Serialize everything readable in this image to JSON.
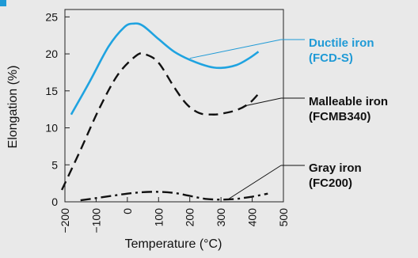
{
  "chart_data": {
    "type": "line",
    "xlabel": "Temperature (°C)",
    "ylabel": "Elongation (%)",
    "xlim": [
      -200,
      500
    ],
    "ylim": [
      0,
      26
    ],
    "x_ticks": [
      -200,
      -100,
      0,
      100,
      200,
      300,
      400,
      500
    ],
    "y_ticks": [
      0,
      5,
      10,
      15,
      20,
      25
    ],
    "grid": false,
    "legend": "right, callout labels with leader lines",
    "series": [
      {
        "name": "Ductile iron",
        "name_sub": "(FCD-S)",
        "color": "#1fa3e0",
        "label_color": "#1f9ad6",
        "style": "solid",
        "x": [
          -180,
          -120,
          -60,
          -10,
          20,
          50,
          100,
          150,
          200,
          260,
          300,
          350,
          390,
          420
        ],
        "y": [
          11.8,
          16.3,
          21,
          23.6,
          24.1,
          23.8,
          22,
          20.3,
          19.2,
          18.3,
          18.1,
          18.5,
          19.4,
          20.3
        ]
      },
      {
        "name": "Malleable iron",
        "name_sub": "(FCMB340)",
        "color": "#111111",
        "label_color": "#111111",
        "style": "dashed",
        "x": [
          -210,
          -150,
          -90,
          -30,
          30,
          60,
          100,
          150,
          190,
          230,
          270,
          300,
          350,
          390,
          420
        ],
        "y": [
          1.6,
          7,
          12.6,
          17.2,
          19.8,
          19.9,
          18.8,
          15.5,
          13.2,
          12,
          11.8,
          11.9,
          12.4,
          13.3,
          14.6
        ]
      },
      {
        "name": "Gray iron",
        "name_sub": "(FC200)",
        "color": "#111111",
        "label_color": "#111111",
        "style": "dashdot",
        "x": [
          -150,
          -100,
          -50,
          0,
          50,
          100,
          150,
          200,
          250,
          300,
          350,
          400,
          450
        ],
        "y": [
          0.2,
          0.5,
          0.8,
          1.1,
          1.3,
          1.35,
          1.2,
          0.8,
          0.4,
          0.3,
          0.4,
          0.7,
          1.1
        ]
      }
    ]
  }
}
